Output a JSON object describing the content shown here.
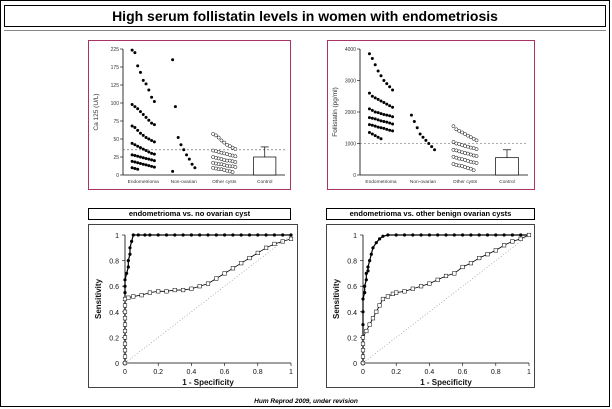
{
  "slide": {
    "title": "High serum follistatin levels in women with endometriosis",
    "footer": "Hum Reprod 2009, under revision"
  },
  "chart_data": [
    {
      "type": "scatter",
      "ylabel": "Ca 125 (U/L)",
      "ylim": [
        0,
        225
      ],
      "yticks": [
        "0",
        "25",
        "50",
        "75",
        "100",
        "125",
        "175",
        "225"
      ],
      "categories": [
        "Endometrioma",
        "Non-ovarian",
        "Other cysts",
        "Control"
      ],
      "cutoff": 35,
      "groups": [
        {
          "name": "Endometrioma",
          "marker": "filled",
          "values": [
            222,
            215,
            178,
            160,
            138,
            128,
            118,
            108,
            102,
            98,
            95,
            92,
            88,
            84,
            80,
            76,
            72,
            70,
            68,
            66,
            62,
            58,
            55,
            52,
            50,
            48,
            46,
            44,
            42,
            40,
            38,
            36,
            34,
            32,
            30,
            29,
            28,
            27,
            26,
            25,
            24,
            23,
            22,
            21,
            20,
            19,
            18,
            17,
            16,
            15,
            14,
            13,
            12,
            11,
            10,
            9,
            8
          ]
        },
        {
          "name": "Non-ovarian",
          "marker": "filled",
          "values": [
            195,
            95,
            52,
            42,
            35,
            28,
            22,
            15,
            10,
            5
          ]
        },
        {
          "name": "Other cysts",
          "marker": "open",
          "values": [
            57,
            55,
            52,
            48,
            45,
            42,
            40,
            38,
            36,
            34,
            33,
            32,
            31,
            30,
            29,
            28,
            27,
            26,
            25,
            24,
            23,
            22,
            21,
            20,
            20,
            19,
            18,
            17,
            16,
            15,
            15,
            14,
            13,
            12,
            12,
            11,
            10,
            9,
            8,
            8,
            7,
            6,
            5,
            4
          ]
        },
        {
          "name": "Control",
          "marker": "bar",
          "mean": 25,
          "sd": 14
        }
      ]
    },
    {
      "type": "scatter",
      "ylabel": "Follistatin (pg/ml)",
      "ylim": [
        0,
        4000
      ],
      "yticks": [
        "0",
        "1000",
        "2000",
        "3000",
        "4000"
      ],
      "categories": [
        "Endometrioma",
        "Non-ovarian",
        "Other cysts",
        "Control"
      ],
      "cutoff": 1000,
      "groups": [
        {
          "name": "Endometrioma",
          "marker": "filled",
          "values": [
            3850,
            3700,
            3500,
            3300,
            3150,
            3000,
            2900,
            2800,
            2700,
            2600,
            2500,
            2450,
            2400,
            2350,
            2300,
            2250,
            2200,
            2150,
            2100,
            2050,
            2000,
            1980,
            1950,
            1920,
            1900,
            1880,
            1850,
            1820,
            1800,
            1780,
            1750,
            1720,
            1700,
            1680,
            1650,
            1620,
            1600,
            1580,
            1550,
            1520,
            1500,
            1480,
            1450,
            1420,
            1400,
            1350,
            1300,
            1250,
            1200,
            1150
          ]
        },
        {
          "name": "Non-ovarian",
          "marker": "filled",
          "values": [
            1900,
            1700,
            1500,
            1300,
            1200,
            1100,
            1000,
            900,
            800
          ]
        },
        {
          "name": "Other cysts",
          "marker": "open",
          "values": [
            1550,
            1450,
            1400,
            1350,
            1300,
            1250,
            1200,
            1150,
            1100,
            1050,
            1000,
            980,
            950,
            920,
            900,
            870,
            850,
            820,
            800,
            780,
            750,
            720,
            700,
            680,
            650,
            620,
            600,
            580,
            550,
            520,
            500,
            480,
            450,
            420,
            400,
            380,
            350,
            320,
            300,
            280,
            250,
            220,
            200,
            150
          ]
        },
        {
          "name": "Control",
          "marker": "bar",
          "mean": 550,
          "sd": 250
        }
      ]
    },
    {
      "type": "line",
      "panel_label": "endometrioma vs. no ovarian cyst",
      "xlabel": "1 - Specificity",
      "ylabel": "Sensitivity",
      "xlim": [
        0,
        1
      ],
      "ylim": [
        0,
        1
      ],
      "xticks": [
        "0",
        "0.2",
        "0.4",
        "0.6",
        "0.8",
        "1"
      ],
      "yticks": [
        "0",
        "0.2",
        "0.4",
        "0.6",
        "0.8",
        "1"
      ],
      "series": [
        {
          "marker": "filled",
          "x": [
            0,
            0,
            0,
            0,
            0,
            0,
            0,
            0,
            0,
            0.01,
            0.02,
            0.02,
            0.03,
            0.03,
            0.04,
            0.05,
            0.08,
            0.12,
            0.15,
            0.2,
            0.25,
            0.3,
            0.35,
            0.4,
            0.45,
            0.5,
            0.55,
            0.6,
            0.65,
            0.7,
            0.75,
            0.8,
            0.85,
            0.9,
            0.95,
            1
          ],
          "y": [
            0,
            0.1,
            0.2,
            0.3,
            0.4,
            0.5,
            0.55,
            0.6,
            0.65,
            0.7,
            0.75,
            0.8,
            0.85,
            0.9,
            0.95,
            1,
            1,
            1,
            1,
            1,
            1,
            1,
            1,
            1,
            1,
            1,
            1,
            1,
            1,
            1,
            1,
            1,
            1,
            1,
            1,
            1
          ]
        },
        {
          "marker": "open",
          "x": [
            0,
            0,
            0,
            0,
            0,
            0,
            0,
            0,
            0,
            0,
            0,
            0.02,
            0.05,
            0.1,
            0.15,
            0.2,
            0.25,
            0.3,
            0.35,
            0.4,
            0.45,
            0.5,
            0.55,
            0.6,
            0.65,
            0.7,
            0.75,
            0.8,
            0.85,
            0.9,
            0.95,
            1
          ],
          "y": [
            0,
            0.05,
            0.1,
            0.15,
            0.2,
            0.25,
            0.3,
            0.35,
            0.4,
            0.45,
            0.5,
            0.51,
            0.52,
            0.53,
            0.55,
            0.56,
            0.56,
            0.57,
            0.57,
            0.58,
            0.6,
            0.62,
            0.66,
            0.7,
            0.74,
            0.78,
            0.82,
            0.86,
            0.9,
            0.93,
            0.95,
            0.97
          ]
        },
        {
          "marker": "none",
          "dotted": true,
          "x": [
            0,
            1
          ],
          "y": [
            0,
            1
          ]
        }
      ]
    },
    {
      "type": "line",
      "panel_label": "endometrioma vs. other benign ovarian cysts",
      "xlabel": "1 - Specificity",
      "ylabel": "Sensitivity",
      "xlim": [
        0,
        1
      ],
      "ylim": [
        0,
        1
      ],
      "xticks": [
        "0",
        "0.2",
        "0.4",
        "0.6",
        "0.8",
        "1"
      ],
      "yticks": [
        "0",
        "0.2",
        "0.4",
        "0.6",
        "0.8",
        "1"
      ],
      "series": [
        {
          "marker": "filled",
          "x": [
            0,
            0,
            0,
            0,
            0,
            0,
            0.01,
            0.01,
            0.02,
            0.02,
            0.03,
            0.03,
            0.04,
            0.05,
            0.06,
            0.08,
            0.1,
            0.12,
            0.15,
            0.2,
            0.25,
            0.3,
            0.35,
            0.4,
            0.45,
            0.5,
            0.55,
            0.6,
            0.65,
            0.7,
            0.75,
            0.8,
            0.85,
            0.9,
            0.95,
            1
          ],
          "y": [
            0,
            0.1,
            0.2,
            0.3,
            0.4,
            0.5,
            0.55,
            0.6,
            0.65,
            0.7,
            0.72,
            0.75,
            0.8,
            0.85,
            0.9,
            0.94,
            0.97,
            0.99,
            1,
            1,
            1,
            1,
            1,
            1,
            1,
            1,
            1,
            1,
            1,
            1,
            1,
            1,
            1,
            1,
            1,
            1
          ]
        },
        {
          "marker": "open",
          "x": [
            0,
            0,
            0,
            0,
            0,
            0.02,
            0.04,
            0.06,
            0.08,
            0.1,
            0.12,
            0.15,
            0.18,
            0.2,
            0.25,
            0.3,
            0.35,
            0.4,
            0.45,
            0.5,
            0.55,
            0.6,
            0.65,
            0.7,
            0.75,
            0.8,
            0.85,
            0.9,
            0.95,
            1
          ],
          "y": [
            0,
            0.05,
            0.1,
            0.15,
            0.2,
            0.25,
            0.3,
            0.35,
            0.4,
            0.45,
            0.5,
            0.52,
            0.54,
            0.55,
            0.56,
            0.58,
            0.6,
            0.62,
            0.65,
            0.68,
            0.7,
            0.75,
            0.78,
            0.82,
            0.85,
            0.88,
            0.92,
            0.95,
            0.97,
            1
          ]
        },
        {
          "marker": "none",
          "dotted": true,
          "x": [
            0,
            1
          ],
          "y": [
            0,
            1
          ]
        }
      ]
    }
  ]
}
